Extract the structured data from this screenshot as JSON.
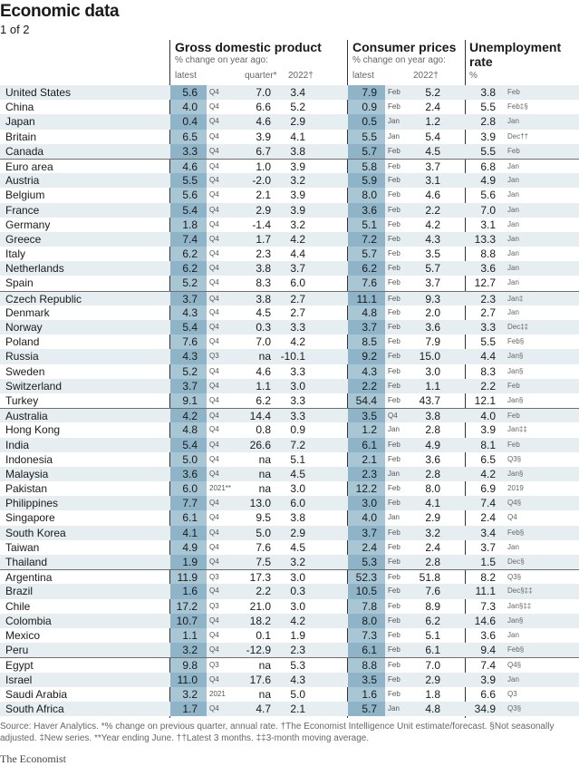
{
  "title": "Economic data",
  "subtitle": "1 of 2",
  "headers": {
    "gdp_title": "Gross domestic product",
    "gdp_sub": "% change on year ago:",
    "gdp_latest": "latest",
    "gdp_quarter": "quarter*",
    "gdp_2022": "2022†",
    "cpi_title": "Consumer prices",
    "cpi_sub": "% change on year ago:",
    "cpi_latest": "latest",
    "cpi_2022": "2022†",
    "unemp_title_1": "Unemployment",
    "unemp_title_2": "rate",
    "unemp_pct": "%"
  },
  "rows": [
    {
      "name": "United States",
      "g": "5.6",
      "gp": "Q4",
      "q": "7.0",
      "g22": "3.4",
      "c": "7.9",
      "cp": "Feb",
      "c22": "5.2",
      "u": "3.8",
      "up": "Feb"
    },
    {
      "name": "China",
      "g": "4.0",
      "gp": "Q4",
      "q": "6.6",
      "g22": "5.2",
      "c": "0.9",
      "cp": "Feb",
      "c22": "2.4",
      "u": "5.5",
      "up": "Feb‡§"
    },
    {
      "name": "Japan",
      "g": "0.4",
      "gp": "Q4",
      "q": "4.6",
      "g22": "2.9",
      "c": "0.5",
      "cp": "Jan",
      "c22": "1.2",
      "u": "2.8",
      "up": "Jan"
    },
    {
      "name": "Britain",
      "g": "6.5",
      "gp": "Q4",
      "q": "3.9",
      "g22": "4.1",
      "c": "5.5",
      "cp": "Jan",
      "c22": "5.4",
      "u": "3.9",
      "up": "Dec††"
    },
    {
      "name": "Canada",
      "g": "3.3",
      "gp": "Q4",
      "q": "6.7",
      "g22": "3.8",
      "c": "5.7",
      "cp": "Feb",
      "c22": "4.5",
      "u": "5.5",
      "up": "Feb"
    },
    {
      "name": "Euro area",
      "g": "4.6",
      "gp": "Q4",
      "q": "1.0",
      "g22": "3.9",
      "c": "5.8",
      "cp": "Feb",
      "c22": "3.7",
      "u": "6.8",
      "up": "Jan"
    },
    {
      "name": "Austria",
      "g": "5.5",
      "gp": "Q4",
      "q": "-2.0",
      "g22": "3.2",
      "c": "5.9",
      "cp": "Feb",
      "c22": "3.1",
      "u": "4.9",
      "up": "Jan"
    },
    {
      "name": "Belgium",
      "g": "5.6",
      "gp": "Q4",
      "q": "2.1",
      "g22": "3.9",
      "c": "8.0",
      "cp": "Feb",
      "c22": "4.6",
      "u": "5.6",
      "up": "Jan"
    },
    {
      "name": "France",
      "g": "5.4",
      "gp": "Q4",
      "q": "2.9",
      "g22": "3.9",
      "c": "3.6",
      "cp": "Feb",
      "c22": "2.2",
      "u": "7.0",
      "up": "Jan"
    },
    {
      "name": "Germany",
      "g": "1.8",
      "gp": "Q4",
      "q": "-1.4",
      "g22": "3.2",
      "c": "5.1",
      "cp": "Feb",
      "c22": "4.2",
      "u": "3.1",
      "up": "Jan"
    },
    {
      "name": "Greece",
      "g": "7.4",
      "gp": "Q4",
      "q": "1.7",
      "g22": "4.2",
      "c": "7.2",
      "cp": "Feb",
      "c22": "4.3",
      "u": "13.3",
      "up": "Jan"
    },
    {
      "name": "Italy",
      "g": "6.2",
      "gp": "Q4",
      "q": "2.3",
      "g22": "4.4",
      "c": "5.7",
      "cp": "Feb",
      "c22": "3.5",
      "u": "8.8",
      "up": "Jan"
    },
    {
      "name": "Netherlands",
      "g": "6.2",
      "gp": "Q4",
      "q": "3.8",
      "g22": "3.7",
      "c": "6.2",
      "cp": "Feb",
      "c22": "5.7",
      "u": "3.6",
      "up": "Jan"
    },
    {
      "name": "Spain",
      "g": "5.2",
      "gp": "Q4",
      "q": "8.3",
      "g22": "6.0",
      "c": "7.6",
      "cp": "Feb",
      "c22": "3.7",
      "u": "12.7",
      "up": "Jan"
    },
    {
      "name": "Czech Republic",
      "g": "3.7",
      "gp": "Q4",
      "q": "3.8",
      "g22": "2.7",
      "c": "11.1",
      "cp": "Feb",
      "c22": "9.3",
      "u": "2.3",
      "up": "Jan‡"
    },
    {
      "name": "Denmark",
      "g": "4.3",
      "gp": "Q4",
      "q": "4.5",
      "g22": "2.7",
      "c": "4.8",
      "cp": "Feb",
      "c22": "2.0",
      "u": "2.7",
      "up": "Jan"
    },
    {
      "name": "Norway",
      "g": "5.4",
      "gp": "Q4",
      "q": "0.3",
      "g22": "3.3",
      "c": "3.7",
      "cp": "Feb",
      "c22": "3.6",
      "u": "3.3",
      "up": "Dec‡‡"
    },
    {
      "name": "Poland",
      "g": "7.6",
      "gp": "Q4",
      "q": "7.0",
      "g22": "4.2",
      "c": "8.5",
      "cp": "Feb",
      "c22": "7.9",
      "u": "5.5",
      "up": "Feb§"
    },
    {
      "name": "Russia",
      "g": "4.3",
      "gp": "Q3",
      "q": "na",
      "g22": "-10.1",
      "c": "9.2",
      "cp": "Feb",
      "c22": "15.0",
      "u": "4.4",
      "up": "Jan§"
    },
    {
      "name": "Sweden",
      "g": "5.2",
      "gp": "Q4",
      "q": "4.6",
      "g22": "3.3",
      "c": "4.3",
      "cp": "Feb",
      "c22": "3.0",
      "u": "8.3",
      "up": "Jan§"
    },
    {
      "name": "Switzerland",
      "g": "3.7",
      "gp": "Q4",
      "q": "1.1",
      "g22": "3.0",
      "c": "2.2",
      "cp": "Feb",
      "c22": "1.1",
      "u": "2.2",
      "up": "Feb"
    },
    {
      "name": "Turkey",
      "g": "9.1",
      "gp": "Q4",
      "q": "6.2",
      "g22": "3.3",
      "c": "54.4",
      "cp": "Feb",
      "c22": "43.7",
      "u": "12.1",
      "up": "Jan§"
    },
    {
      "name": "Australia",
      "g": "4.2",
      "gp": "Q4",
      "q": "14.4",
      "g22": "3.3",
      "c": "3.5",
      "cp": "Q4",
      "c22": "3.8",
      "u": "4.0",
      "up": "Feb"
    },
    {
      "name": "Hong Kong",
      "g": "4.8",
      "gp": "Q4",
      "q": "0.8",
      "g22": "0.9",
      "c": "1.2",
      "cp": "Jan",
      "c22": "2.8",
      "u": "3.9",
      "up": "Jan‡‡"
    },
    {
      "name": "India",
      "g": "5.4",
      "gp": "Q4",
      "q": "26.6",
      "g22": "7.2",
      "c": "6.1",
      "cp": "Feb",
      "c22": "4.9",
      "u": "8.1",
      "up": "Feb"
    },
    {
      "name": "Indonesia",
      "g": "5.0",
      "gp": "Q4",
      "q": "na",
      "g22": "5.1",
      "c": "2.1",
      "cp": "Feb",
      "c22": "3.6",
      "u": "6.5",
      "up": "Q3§"
    },
    {
      "name": "Malaysia",
      "g": "3.6",
      "gp": "Q4",
      "q": "na",
      "g22": "4.5",
      "c": "2.3",
      "cp": "Jan",
      "c22": "2.8",
      "u": "4.2",
      "up": "Jan§"
    },
    {
      "name": "Pakistan",
      "g": "6.0",
      "gp": "2021**",
      "q": "na",
      "g22": "3.0",
      "c": "12.2",
      "cp": "Feb",
      "c22": "8.0",
      "u": "6.9",
      "up": "2019"
    },
    {
      "name": "Philippines",
      "g": "7.7",
      "gp": "Q4",
      "q": "13.0",
      "g22": "6.0",
      "c": "3.0",
      "cp": "Feb",
      "c22": "4.1",
      "u": "7.4",
      "up": "Q4§"
    },
    {
      "name": "Singapore",
      "g": "6.1",
      "gp": "Q4",
      "q": "9.5",
      "g22": "3.8",
      "c": "4.0",
      "cp": "Jan",
      "c22": "2.9",
      "u": "2.4",
      "up": "Q4"
    },
    {
      "name": "South Korea",
      "g": "4.1",
      "gp": "Q4",
      "q": "5.0",
      "g22": "2.9",
      "c": "3.7",
      "cp": "Feb",
      "c22": "3.2",
      "u": "3.4",
      "up": "Feb§"
    },
    {
      "name": "Taiwan",
      "g": "4.9",
      "gp": "Q4",
      "q": "7.6",
      "g22": "4.5",
      "c": "2.4",
      "cp": "Feb",
      "c22": "2.4",
      "u": "3.7",
      "up": "Jan"
    },
    {
      "name": "Thailand",
      "g": "1.9",
      "gp": "Q4",
      "q": "7.5",
      "g22": "3.2",
      "c": "5.3",
      "cp": "Feb",
      "c22": "2.8",
      "u": "1.5",
      "up": "Dec§"
    },
    {
      "name": "Argentina",
      "g": "11.9",
      "gp": "Q3",
      "q": "17.3",
      "g22": "3.0",
      "c": "52.3",
      "cp": "Feb",
      "c22": "51.8",
      "u": "8.2",
      "up": "Q3§"
    },
    {
      "name": "Brazil",
      "g": "1.6",
      "gp": "Q4",
      "q": "2.2",
      "g22": "0.3",
      "c": "10.5",
      "cp": "Feb",
      "c22": "7.6",
      "u": "11.1",
      "up": "Dec§‡‡"
    },
    {
      "name": "Chile",
      "g": "17.2",
      "gp": "Q3",
      "q": "21.0",
      "g22": "3.0",
      "c": "7.8",
      "cp": "Feb",
      "c22": "8.9",
      "u": "7.3",
      "up": "Jan§‡‡"
    },
    {
      "name": "Colombia",
      "g": "10.7",
      "gp": "Q4",
      "q": "18.2",
      "g22": "4.2",
      "c": "8.0",
      "cp": "Feb",
      "c22": "6.2",
      "u": "14.6",
      "up": "Jan§"
    },
    {
      "name": "Mexico",
      "g": "1.1",
      "gp": "Q4",
      "q": "0.1",
      "g22": "1.9",
      "c": "7.3",
      "cp": "Feb",
      "c22": "5.1",
      "u": "3.6",
      "up": "Jan"
    },
    {
      "name": "Peru",
      "g": "3.2",
      "gp": "Q4",
      "q": "-12.9",
      "g22": "2.3",
      "c": "6.1",
      "cp": "Feb",
      "c22": "6.1",
      "u": "9.4",
      "up": "Feb§"
    },
    {
      "name": "Egypt",
      "g": "9.8",
      "gp": "Q3",
      "q": "na",
      "g22": "5.3",
      "c": "8.8",
      "cp": "Feb",
      "c22": "7.0",
      "u": "7.4",
      "up": "Q4§"
    },
    {
      "name": "Israel",
      "g": "11.0",
      "gp": "Q4",
      "q": "17.6",
      "g22": "4.3",
      "c": "3.5",
      "cp": "Feb",
      "c22": "2.9",
      "u": "3.9",
      "up": "Jan"
    },
    {
      "name": "Saudi Arabia",
      "g": "3.2",
      "gp": "2021",
      "q": "na",
      "g22": "5.0",
      "c": "1.6",
      "cp": "Feb",
      "c22": "1.8",
      "u": "6.6",
      "up": "Q3"
    },
    {
      "name": "South Africa",
      "g": "1.7",
      "gp": "Q4",
      "q": "4.7",
      "g22": "2.1",
      "c": "5.7",
      "cp": "Jan",
      "c22": "4.8",
      "u": "34.9",
      "up": "Q3§"
    }
  ],
  "group_starts": [
    5,
    14,
    22,
    33,
    39
  ],
  "footer": "Source: Haver Analytics. *% change on previous quarter, annual rate. †The Economist Intelligence Unit estimate/forecast. §Not seasonally adjusted. ‡New series. **Year ending June. ††Latest 3 months. ‡‡3-month moving average.",
  "logo": "The Economist"
}
